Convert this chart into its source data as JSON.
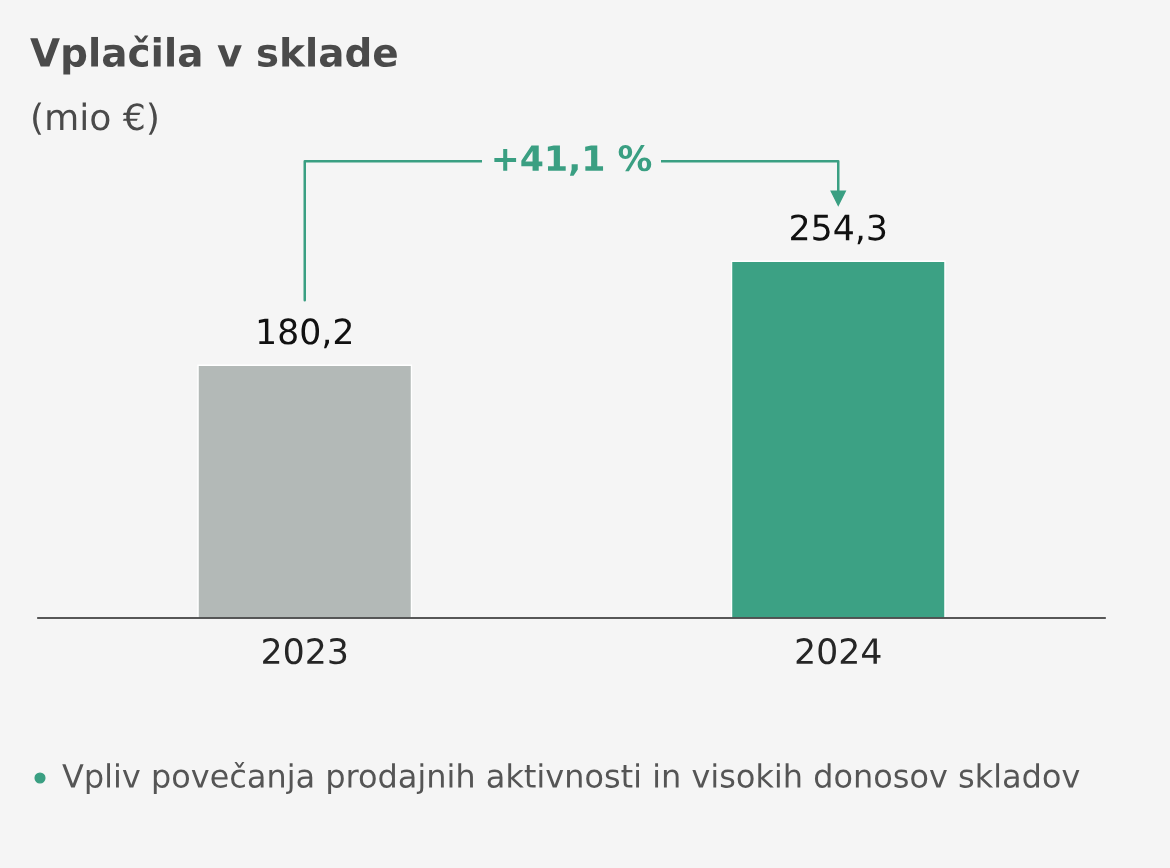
{
  "chart_data": {
    "type": "bar",
    "title": "Vplačila v sklade",
    "subtitle": "(mio €)",
    "categories": [
      "2023",
      "2024"
    ],
    "values": [
      180.2,
      254.3
    ],
    "colors": [
      "#b3b9b7",
      "#3ca184"
    ],
    "value_labels": [
      "180,2",
      "254,3"
    ],
    "tick_labels": "x",
    "grid": false,
    "legend": false,
    "annotations": [
      "+41,1 %",
      "Vpliv povečanja prodajnih aktivnosti in visokih donosov skladov"
    ]
  }
}
